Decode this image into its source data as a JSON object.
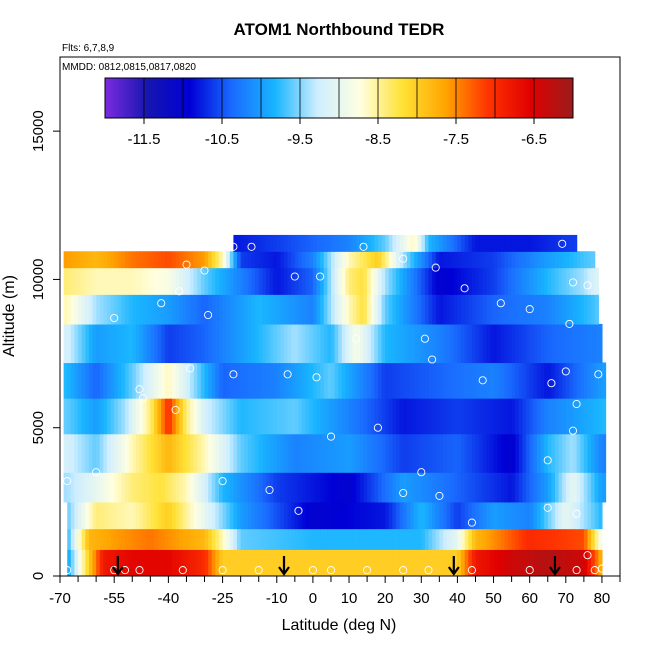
{
  "chart_data": {
    "type": "heatmap",
    "title": "ATOM1 Northbound TEDR",
    "annotations": [
      "Flts: 6,7,8,9",
      "MMDD: 0812,0815,0817,0820"
    ],
    "xlabel": "Latitude (deg N)",
    "ylabel": "Altitude (m)",
    "xlim": [
      -70,
      85
    ],
    "ylim": [
      0,
      17500
    ],
    "x_ticks": [
      -70,
      -55,
      -40,
      -25,
      -10,
      0,
      10,
      20,
      30,
      40,
      50,
      60,
      70,
      80
    ],
    "x_tick_labels": [
      "-70",
      "-55",
      "-40",
      "-25",
      "-10",
      "0",
      "10",
      "20",
      "30",
      "40",
      "50",
      "60",
      "70",
      "80"
    ],
    "x_minor_ticks": [
      -65,
      -60,
      -50,
      -45,
      -35,
      -30,
      -20,
      -15,
      -5,
      5,
      15,
      25,
      35,
      45,
      55,
      65,
      75,
      85
    ],
    "y_ticks": [
      0,
      5000,
      10000,
      15000
    ],
    "y_tick_labels": [
      "0",
      "5000",
      "10000",
      "15000"
    ],
    "colorbar": {
      "range": [
        -12,
        -6
      ],
      "ticks": [
        -11.5,
        -10.5,
        -9.5,
        -8.5,
        -7.5,
        -6.5
      ],
      "tick_labels": [
        "-11.5",
        "-10.5",
        "-9.5",
        "-8.5",
        "-7.5",
        "-6.5"
      ],
      "colors": [
        "#7b2be0",
        "#1616b0",
        "#0000d6",
        "#1a6cff",
        "#19b5ff",
        "#cfeeff",
        "#ffffe0",
        "#ffe135",
        "#ffa500",
        "#ff3300",
        "#e00000",
        "#9b1c1c"
      ]
    },
    "field_rows": [
      {
        "alt": [
          0,
          900
        ],
        "pts": [
          [
            -68,
            -10.0
          ],
          [
            -62,
            -8.0
          ],
          [
            -58,
            -6.8
          ],
          [
            -50,
            -6.6
          ],
          [
            -40,
            -6.6
          ],
          [
            -30,
            -7.0
          ],
          [
            -25,
            -8.0
          ],
          [
            -22,
            -8.0
          ],
          [
            0,
            -8.0
          ],
          [
            30,
            -8.0
          ],
          [
            40,
            -8.0
          ],
          [
            45,
            -6.8
          ],
          [
            55,
            -6.4
          ],
          [
            65,
            -6.2
          ],
          [
            75,
            -6.4
          ],
          [
            80,
            -7.8
          ]
        ]
      },
      {
        "alt": [
          900,
          1600
        ],
        "pts": [
          [
            -68,
            -9.8
          ],
          [
            -62,
            -7.8
          ],
          [
            -55,
            -7.6
          ],
          [
            -45,
            -7.4
          ],
          [
            -30,
            -7.8
          ],
          [
            -25,
            -8.6
          ],
          [
            -20,
            -9.6
          ],
          [
            0,
            -9.8
          ],
          [
            30,
            -9.8
          ],
          [
            40,
            -9.0
          ],
          [
            45,
            -7.8
          ],
          [
            60,
            -7.0
          ],
          [
            75,
            -7.2
          ],
          [
            80,
            -9.0
          ]
        ]
      },
      {
        "alt": [
          1600,
          2500
        ],
        "pts": [
          [
            -68,
            -9.6
          ],
          [
            -60,
            -8.4
          ],
          [
            -50,
            -8.6
          ],
          [
            -40,
            -8.0
          ],
          [
            -30,
            -9.0
          ],
          [
            -20,
            -10.0
          ],
          [
            0,
            -11.0
          ],
          [
            20,
            -10.8
          ],
          [
            30,
            -9.8
          ],
          [
            40,
            -10.6
          ],
          [
            50,
            -10.0
          ],
          [
            60,
            -10.2
          ],
          [
            70,
            -9.0
          ],
          [
            80,
            -9.8
          ]
        ]
      },
      {
        "alt": [
          2500,
          3500
        ],
        "pts": [
          [
            -68,
            -9.4
          ],
          [
            -60,
            -9.0
          ],
          [
            -50,
            -8.4
          ],
          [
            -42,
            -8.2
          ],
          [
            -35,
            -8.6
          ],
          [
            -25,
            -9.8
          ],
          [
            -10,
            -10.6
          ],
          [
            10,
            -11.0
          ],
          [
            25,
            -10.0
          ],
          [
            40,
            -10.4
          ],
          [
            55,
            -10.8
          ],
          [
            65,
            -10.0
          ],
          [
            72,
            -9.0
          ],
          [
            80,
            -10.0
          ]
        ]
      },
      {
        "alt": [
          3500,
          4800
        ],
        "pts": [
          [
            -68,
            -9.2
          ],
          [
            -60,
            -9.6
          ],
          [
            -50,
            -8.6
          ],
          [
            -40,
            -7.8
          ],
          [
            -30,
            -8.6
          ],
          [
            -20,
            -9.6
          ],
          [
            -5,
            -10.2
          ],
          [
            10,
            -10.0
          ],
          [
            25,
            -10.6
          ],
          [
            40,
            -10.4
          ],
          [
            55,
            -11.0
          ],
          [
            65,
            -9.8
          ],
          [
            72,
            -9.4
          ],
          [
            80,
            -10.2
          ]
        ]
      },
      {
        "alt": [
          4800,
          6000
        ],
        "pts": [
          [
            -68,
            -9.6
          ],
          [
            -60,
            -10.0
          ],
          [
            -52,
            -9.4
          ],
          [
            -45,
            -8.4
          ],
          [
            -40,
            -7.0
          ],
          [
            -35,
            -8.4
          ],
          [
            -30,
            -9.2
          ],
          [
            -20,
            -9.8
          ],
          [
            -5,
            -9.6
          ],
          [
            10,
            -10.2
          ],
          [
            25,
            -10.8
          ],
          [
            40,
            -10.6
          ],
          [
            55,
            -10.8
          ],
          [
            65,
            -10.2
          ],
          [
            80,
            -9.8
          ]
        ]
      },
      {
        "alt": [
          6000,
          7200
        ],
        "pts": [
          [
            -68,
            -9.8
          ],
          [
            -60,
            -10.4
          ],
          [
            -50,
            -9.6
          ],
          [
            -40,
            -8.6
          ],
          [
            -35,
            -9.2
          ],
          [
            -25,
            -10.4
          ],
          [
            -10,
            -10.2
          ],
          [
            5,
            -9.6
          ],
          [
            20,
            -10.6
          ],
          [
            35,
            -10.4
          ],
          [
            50,
            -10.2
          ],
          [
            65,
            -10.8
          ],
          [
            80,
            -10.0
          ]
        ]
      },
      {
        "alt": [
          7200,
          8500
        ],
        "pts": [
          [
            -68,
            -9.2
          ],
          [
            -60,
            -10.0
          ],
          [
            -50,
            -9.8
          ],
          [
            -40,
            -10.6
          ],
          [
            -30,
            -10.4
          ],
          [
            -20,
            -10.0
          ],
          [
            -5,
            -9.4
          ],
          [
            5,
            -9.8
          ],
          [
            12,
            -8.8
          ],
          [
            20,
            -9.8
          ],
          [
            35,
            -10.2
          ],
          [
            50,
            -10.8
          ],
          [
            65,
            -10.4
          ],
          [
            80,
            -10.2
          ]
        ]
      },
      {
        "alt": [
          8500,
          9500
        ],
        "pts": [
          [
            -68,
            -8.6
          ],
          [
            -60,
            -9.4
          ],
          [
            -50,
            -9.8
          ],
          [
            -40,
            -10.0
          ],
          [
            -30,
            -10.4
          ],
          [
            -15,
            -9.8
          ],
          [
            0,
            -10.2
          ],
          [
            10,
            -8.6
          ],
          [
            14,
            -8.2
          ],
          [
            20,
            -9.6
          ],
          [
            35,
            -10.8
          ],
          [
            50,
            -10.4
          ],
          [
            65,
            -10.2
          ],
          [
            80,
            -9.6
          ]
        ]
      },
      {
        "alt": [
          9500,
          10400
        ],
        "pts": [
          [
            -68,
            -8.4
          ],
          [
            -60,
            -8.6
          ],
          [
            -50,
            -8.6
          ],
          [
            -40,
            -8.8
          ],
          [
            -30,
            -9.6
          ],
          [
            -20,
            -10.2
          ],
          [
            -10,
            -10.8
          ],
          [
            0,
            -10.4
          ],
          [
            10,
            -8.4
          ],
          [
            14,
            -8.2
          ],
          [
            20,
            -9.4
          ],
          [
            35,
            -11.0
          ],
          [
            50,
            -10.6
          ],
          [
            65,
            -9.8
          ],
          [
            75,
            -9.4
          ],
          [
            80,
            -9.0
          ]
        ]
      },
      {
        "alt": [
          10400,
          10950
        ],
        "pts": [
          [
            -68,
            -7.6
          ],
          [
            -60,
            -7.8
          ],
          [
            -50,
            -7.4
          ],
          [
            -40,
            -7.2
          ],
          [
            -30,
            -7.6
          ],
          [
            -25,
            -8.6
          ],
          [
            -20,
            -10.6
          ],
          [
            -10,
            -10.8
          ],
          [
            0,
            -10.2
          ],
          [
            10,
            -8.6
          ],
          [
            18,
            -8.0
          ],
          [
            25,
            -9.4
          ],
          [
            35,
            -10.8
          ],
          [
            50,
            -10.6
          ],
          [
            65,
            -10.0
          ],
          [
            78,
            -9.6
          ]
        ]
      },
      {
        "alt": [
          10950,
          11500
        ],
        "pts": [
          [
            -22,
            -10.8
          ],
          [
            -10,
            -10.6
          ],
          [
            0,
            -10.4
          ],
          [
            10,
            -10.2
          ],
          [
            20,
            -9.6
          ],
          [
            28,
            -8.6
          ],
          [
            32,
            -9.8
          ],
          [
            45,
            -10.8
          ],
          [
            60,
            -10.8
          ],
          [
            72,
            -10.6
          ]
        ]
      }
    ],
    "row_extents": [
      [
        -68,
        80
      ],
      [
        -68,
        80
      ],
      [
        -68,
        80
      ],
      [
        -69,
        81
      ],
      [
        -69,
        81
      ],
      [
        -69,
        81
      ],
      [
        -69,
        81
      ],
      [
        -69,
        80
      ],
      [
        -69,
        79
      ],
      [
        -69,
        79
      ],
      [
        -69,
        78
      ],
      [
        -22,
        73
      ]
    ],
    "observation_points": [
      [
        -68,
        200
      ],
      [
        -55,
        200
      ],
      [
        -52,
        200
      ],
      [
        -48,
        200
      ],
      [
        -36,
        200
      ],
      [
        -25,
        200
      ],
      [
        -15,
        200
      ],
      [
        0,
        200
      ],
      [
        5,
        200
      ],
      [
        15,
        200
      ],
      [
        25,
        200
      ],
      [
        32,
        200
      ],
      [
        44,
        200
      ],
      [
        60,
        200
      ],
      [
        73,
        200
      ],
      [
        78,
        200
      ],
      [
        80,
        250
      ],
      [
        -68,
        3200
      ],
      [
        -60,
        3500
      ],
      [
        -25,
        3200
      ],
      [
        -12,
        2900
      ],
      [
        -4,
        2200
      ],
      [
        25,
        2800
      ],
      [
        30,
        3500
      ],
      [
        35,
        2700
      ],
      [
        44,
        1800
      ],
      [
        65,
        2300
      ],
      [
        73,
        2100
      ],
      [
        76,
        700
      ],
      [
        -47,
        6000
      ],
      [
        -48,
        6300
      ],
      [
        -38,
        5600
      ],
      [
        -34,
        7000
      ],
      [
        -22,
        6800
      ],
      [
        -7,
        6800
      ],
      [
        1,
        6700
      ],
      [
        5,
        4700
      ],
      [
        18,
        5000
      ],
      [
        33,
        7300
      ],
      [
        47,
        6600
      ],
      [
        66,
        6500
      ],
      [
        70,
        6900
      ],
      [
        72,
        4900
      ],
      [
        73,
        5800
      ],
      [
        79,
        6800
      ],
      [
        65,
        3900
      ],
      [
        -55,
        8700
      ],
      [
        -42,
        9200
      ],
      [
        -37,
        9600
      ],
      [
        -29,
        8800
      ],
      [
        -35,
        10500
      ],
      [
        -30,
        10300
      ],
      [
        -5,
        10100
      ],
      [
        2,
        10100
      ],
      [
        12,
        8000
      ],
      [
        25,
        10700
      ],
      [
        31,
        8000
      ],
      [
        34,
        10400
      ],
      [
        42,
        9700
      ],
      [
        52,
        9200
      ],
      [
        60,
        9000
      ],
      [
        71,
        8500
      ],
      [
        72,
        9900
      ],
      [
        76,
        9800
      ],
      [
        -22,
        11100
      ],
      [
        -17,
        11100
      ],
      [
        14,
        11100
      ],
      [
        69,
        11200
      ]
    ],
    "flight_arrows_x": [
      -54,
      -8,
      39,
      67
    ]
  }
}
